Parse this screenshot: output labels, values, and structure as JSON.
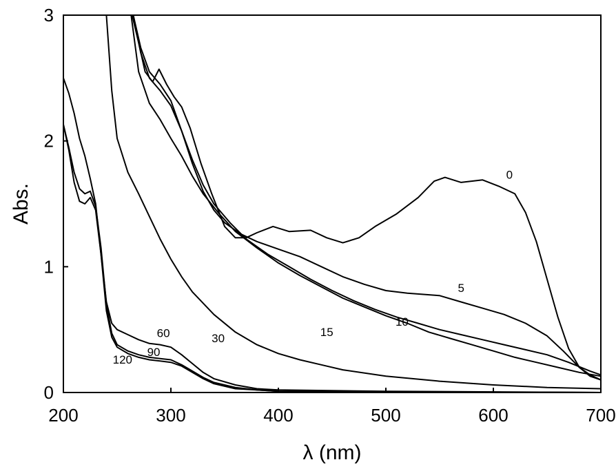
{
  "chart_data": {
    "type": "line",
    "xlabel": "λ (nm)",
    "ylabel": "Abs.",
    "xlim": [
      200,
      700
    ],
    "ylim": [
      0,
      3
    ],
    "xticks": [
      200,
      300,
      400,
      500,
      600,
      700
    ],
    "yticks": [
      0,
      1,
      2,
      3
    ],
    "grid": false,
    "series": [
      {
        "name": "0",
        "points": [
          [
            264,
            3.0
          ],
          [
            270,
            2.78
          ],
          [
            276,
            2.55
          ],
          [
            283,
            2.47
          ],
          [
            289,
            2.57
          ],
          [
            296,
            2.45
          ],
          [
            303,
            2.35
          ],
          [
            310,
            2.27
          ],
          [
            318,
            2.1
          ],
          [
            328,
            1.82
          ],
          [
            338,
            1.58
          ],
          [
            350,
            1.32
          ],
          [
            360,
            1.23
          ],
          [
            370,
            1.23
          ],
          [
            380,
            1.27
          ],
          [
            395,
            1.32
          ],
          [
            410,
            1.28
          ],
          [
            430,
            1.29
          ],
          [
            445,
            1.23
          ],
          [
            460,
            1.19
          ],
          [
            475,
            1.23
          ],
          [
            490,
            1.32
          ],
          [
            510,
            1.42
          ],
          [
            530,
            1.55
          ],
          [
            545,
            1.68
          ],
          [
            555,
            1.71
          ],
          [
            570,
            1.67
          ],
          [
            590,
            1.69
          ],
          [
            605,
            1.64
          ],
          [
            620,
            1.58
          ],
          [
            630,
            1.43
          ],
          [
            640,
            1.2
          ],
          [
            650,
            0.9
          ],
          [
            660,
            0.6
          ],
          [
            670,
            0.35
          ],
          [
            680,
            0.2
          ],
          [
            690,
            0.13
          ],
          [
            700,
            0.1
          ]
        ]
      },
      {
        "name": "5",
        "points": [
          [
            265,
            3.0
          ],
          [
            272,
            2.74
          ],
          [
            280,
            2.55
          ],
          [
            290,
            2.45
          ],
          [
            300,
            2.32
          ],
          [
            310,
            2.08
          ],
          [
            320,
            1.82
          ],
          [
            330,
            1.6
          ],
          [
            340,
            1.45
          ],
          [
            350,
            1.35
          ],
          [
            365,
            1.26
          ],
          [
            380,
            1.2
          ],
          [
            400,
            1.14
          ],
          [
            420,
            1.08
          ],
          [
            440,
            1.0
          ],
          [
            460,
            0.92
          ],
          [
            480,
            0.86
          ],
          [
            500,
            0.81
          ],
          [
            520,
            0.79
          ],
          [
            550,
            0.77
          ],
          [
            570,
            0.72
          ],
          [
            590,
            0.67
          ],
          [
            610,
            0.62
          ],
          [
            630,
            0.55
          ],
          [
            650,
            0.45
          ],
          [
            665,
            0.33
          ],
          [
            680,
            0.2
          ],
          [
            690,
            0.14
          ],
          [
            700,
            0.1
          ]
        ]
      },
      {
        "name": "10",
        "points": [
          [
            265,
            3.0
          ],
          [
            272,
            2.7
          ],
          [
            280,
            2.5
          ],
          [
            290,
            2.4
          ],
          [
            300,
            2.28
          ],
          [
            310,
            2.08
          ],
          [
            320,
            1.85
          ],
          [
            330,
            1.65
          ],
          [
            340,
            1.5
          ],
          [
            355,
            1.35
          ],
          [
            370,
            1.22
          ],
          [
            390,
            1.1
          ],
          [
            410,
            1.0
          ],
          [
            430,
            0.9
          ],
          [
            450,
            0.81
          ],
          [
            470,
            0.73
          ],
          [
            490,
            0.66
          ],
          [
            510,
            0.6
          ],
          [
            530,
            0.55
          ],
          [
            550,
            0.5
          ],
          [
            570,
            0.46
          ],
          [
            590,
            0.42
          ],
          [
            610,
            0.38
          ],
          [
            630,
            0.34
          ],
          [
            650,
            0.3
          ],
          [
            670,
            0.24
          ],
          [
            690,
            0.17
          ],
          [
            700,
            0.14
          ]
        ]
      },
      {
        "name": "15",
        "points": [
          [
            263,
            3.0
          ],
          [
            270,
            2.55
          ],
          [
            280,
            2.3
          ],
          [
            290,
            2.17
          ],
          [
            300,
            2.02
          ],
          [
            310,
            1.88
          ],
          [
            320,
            1.72
          ],
          [
            330,
            1.58
          ],
          [
            345,
            1.42
          ],
          [
            360,
            1.28
          ],
          [
            380,
            1.15
          ],
          [
            400,
            1.03
          ],
          [
            420,
            0.93
          ],
          [
            440,
            0.84
          ],
          [
            460,
            0.75
          ],
          [
            480,
            0.68
          ],
          [
            500,
            0.61
          ],
          [
            520,
            0.55
          ],
          [
            540,
            0.48
          ],
          [
            560,
            0.43
          ],
          [
            580,
            0.38
          ],
          [
            600,
            0.33
          ],
          [
            620,
            0.28
          ],
          [
            640,
            0.24
          ],
          [
            660,
            0.2
          ],
          [
            680,
            0.16
          ],
          [
            700,
            0.13
          ]
        ]
      },
      {
        "name": "30",
        "points": [
          [
            240,
            3.0
          ],
          [
            245,
            2.4
          ],
          [
            250,
            2.02
          ],
          [
            260,
            1.75
          ],
          [
            270,
            1.58
          ],
          [
            280,
            1.4
          ],
          [
            290,
            1.22
          ],
          [
            300,
            1.06
          ],
          [
            310,
            0.92
          ],
          [
            320,
            0.8
          ],
          [
            340,
            0.62
          ],
          [
            360,
            0.48
          ],
          [
            380,
            0.38
          ],
          [
            400,
            0.31
          ],
          [
            420,
            0.26
          ],
          [
            440,
            0.22
          ],
          [
            460,
            0.18
          ],
          [
            500,
            0.13
          ],
          [
            550,
            0.09
          ],
          [
            600,
            0.06
          ],
          [
            650,
            0.04
          ],
          [
            700,
            0.03
          ]
        ]
      },
      {
        "name": "60",
        "points": [
          [
            200,
            2.5
          ],
          [
            205,
            2.38
          ],
          [
            210,
            2.22
          ],
          [
            215,
            2.02
          ],
          [
            220,
            1.88
          ],
          [
            225,
            1.7
          ],
          [
            230,
            1.5
          ],
          [
            235,
            1.1
          ],
          [
            240,
            0.72
          ],
          [
            245,
            0.55
          ],
          [
            250,
            0.5
          ],
          [
            260,
            0.46
          ],
          [
            270,
            0.42
          ],
          [
            280,
            0.39
          ],
          [
            290,
            0.38
          ],
          [
            300,
            0.36
          ],
          [
            310,
            0.3
          ],
          [
            320,
            0.23
          ],
          [
            330,
            0.16
          ],
          [
            340,
            0.11
          ],
          [
            360,
            0.06
          ],
          [
            380,
            0.03
          ],
          [
            400,
            0.02
          ],
          [
            500,
            0.01
          ],
          [
            700,
            0.0
          ]
        ]
      },
      {
        "name": "90",
        "points": [
          [
            200,
            2.13
          ],
          [
            205,
            1.95
          ],
          [
            210,
            1.75
          ],
          [
            215,
            1.62
          ],
          [
            220,
            1.58
          ],
          [
            225,
            1.6
          ],
          [
            230,
            1.48
          ],
          [
            235,
            1.15
          ],
          [
            240,
            0.7
          ],
          [
            245,
            0.47
          ],
          [
            250,
            0.38
          ],
          [
            260,
            0.33
          ],
          [
            270,
            0.3
          ],
          [
            280,
            0.28
          ],
          [
            290,
            0.27
          ],
          [
            300,
            0.26
          ],
          [
            310,
            0.22
          ],
          [
            320,
            0.17
          ],
          [
            330,
            0.12
          ],
          [
            340,
            0.08
          ],
          [
            360,
            0.04
          ],
          [
            380,
            0.02
          ],
          [
            400,
            0.01
          ],
          [
            700,
            0.0
          ]
        ]
      },
      {
        "name": "120",
        "points": [
          [
            200,
            2.13
          ],
          [
            205,
            1.93
          ],
          [
            210,
            1.67
          ],
          [
            215,
            1.52
          ],
          [
            220,
            1.5
          ],
          [
            225,
            1.55
          ],
          [
            230,
            1.45
          ],
          [
            235,
            1.1
          ],
          [
            240,
            0.65
          ],
          [
            245,
            0.44
          ],
          [
            250,
            0.36
          ],
          [
            260,
            0.31
          ],
          [
            270,
            0.28
          ],
          [
            280,
            0.26
          ],
          [
            290,
            0.25
          ],
          [
            300,
            0.24
          ],
          [
            310,
            0.21
          ],
          [
            320,
            0.16
          ],
          [
            330,
            0.11
          ],
          [
            340,
            0.07
          ],
          [
            360,
            0.03
          ],
          [
            380,
            0.02
          ],
          [
            400,
            0.01
          ],
          [
            700,
            0.0
          ]
        ]
      }
    ],
    "annotations": [
      {
        "text": "0",
        "x": 615,
        "y": 1.7
      },
      {
        "text": "5",
        "x": 570,
        "y": 0.8
      },
      {
        "text": "10",
        "x": 515,
        "y": 0.53
      },
      {
        "text": "15",
        "x": 445,
        "y": 0.45
      },
      {
        "text": "30",
        "x": 344,
        "y": 0.4
      },
      {
        "text": "60",
        "x": 293,
        "y": 0.44
      },
      {
        "text": "90",
        "x": 284,
        "y": 0.29
      },
      {
        "text": "120",
        "x": 255,
        "y": 0.23
      }
    ]
  }
}
